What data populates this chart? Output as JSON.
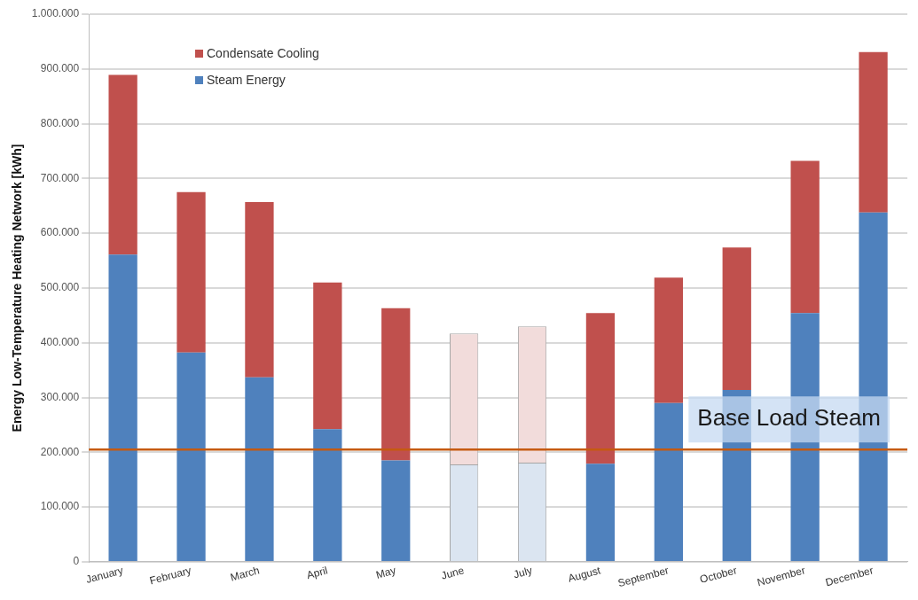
{
  "chart_data": {
    "type": "bar",
    "stacked": true,
    "ylabel": "Energy Low-Temperature Heating Network [kWh]",
    "categories": [
      "January",
      "February",
      "March",
      "April",
      "May",
      "June",
      "July",
      "August",
      "September",
      "October",
      "November",
      "December"
    ],
    "series": [
      {
        "name": "Steam Energy",
        "color": "#4f81bd",
        "colors": [
          "#4f81bd",
          "#4f81bd",
          "#4f81bd",
          "#4f81bd",
          "#4f81bd",
          "#dbe5f1",
          "#dbe5f1",
          "#4f81bd",
          "#4f81bd",
          "#4f81bd",
          "#4f81bd",
          "#4f81bd"
        ],
        "values": [
          561000,
          382000,
          337000,
          242000,
          185000,
          178000,
          181000,
          179000,
          290000,
          314000,
          454000,
          638000
        ]
      },
      {
        "name": "Condensate Cooling",
        "color": "#c0504d",
        "colors": [
          "#c0504d",
          "#c0504d",
          "#c0504d",
          "#c0504d",
          "#c0504d",
          "#f2dcdb",
          "#f2dcdb",
          "#c0504d",
          "#c0504d",
          "#c0504d",
          "#c0504d",
          "#c0504d"
        ],
        "values": [
          328000,
          293000,
          320000,
          268000,
          278000,
          239000,
          249000,
          275000,
          229000,
          260000,
          278000,
          293000
        ]
      }
    ],
    "ylim": [
      0,
      1000000
    ],
    "yticks": [
      {
        "value": 0,
        "label": "0"
      },
      {
        "value": 100000,
        "label": "100.000"
      },
      {
        "value": 200000,
        "label": "200.000"
      },
      {
        "value": 300000,
        "label": "300.000"
      },
      {
        "value": 400000,
        "label": "400.000"
      },
      {
        "value": 500000,
        "label": "500.000"
      },
      {
        "value": 600000,
        "label": "600.000"
      },
      {
        "value": 700000,
        "label": "700.000"
      },
      {
        "value": 800000,
        "label": "800.000"
      },
      {
        "value": 900000,
        "label": "900.000"
      },
      {
        "value": 1000000,
        "label": "1.000.000"
      }
    ],
    "ref_lines": [
      {
        "axis": "y",
        "value": 205000,
        "label": "Base Load Steam",
        "color": "#c55a11"
      }
    ],
    "grid": "y",
    "legend": "top left"
  }
}
